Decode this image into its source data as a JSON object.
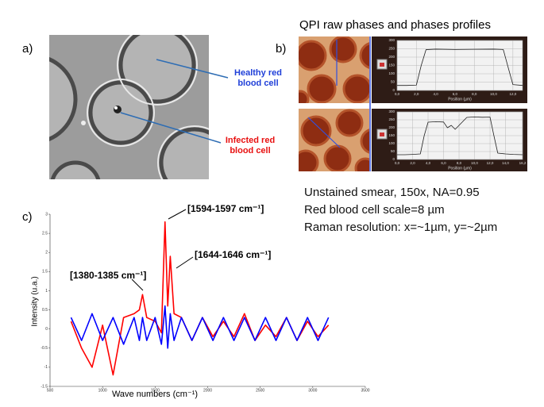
{
  "panel_a": {
    "label": "a)",
    "healthy": [
      "Healthy red",
      "blood cell"
    ],
    "infected": [
      "Infected red",
      "blood cell"
    ]
  },
  "panel_b": {
    "label": "b)",
    "title": "QPI raw phases and phases profiles",
    "profiles": [
      {
        "type": "line",
        "xlabel": "Position (µm)",
        "grid": true,
        "xlim": [
          0,
          13
        ],
        "ylim": [
          0,
          300
        ],
        "xticks": [
          {
            "value": 0,
            "label": "0,0"
          },
          {
            "value": 2,
            "label": "2,0"
          },
          {
            "value": 4,
            "label": "4,0"
          },
          {
            "value": 6,
            "label": "6,0"
          },
          {
            "value": 8,
            "label": "8,0"
          },
          {
            "value": 10,
            "label": "10,0"
          },
          {
            "value": 12,
            "label": "12,0"
          }
        ],
        "yticks": [
          0,
          50,
          100,
          150,
          200,
          250,
          300
        ],
        "x": [
          0,
          1,
          2,
          2.5,
          3,
          4,
          6,
          8,
          10,
          11,
          11.5,
          12,
          13
        ],
        "series": [
          {
            "color": "#222222",
            "values": [
              30,
              30,
              32,
              150,
              245,
              248,
              246,
              247,
              248,
              246,
              140,
              35,
              30
            ]
          }
        ]
      },
      {
        "type": "line",
        "xlabel": "Position (µm)",
        "grid": true,
        "xlim": [
          0,
          16.2
        ],
        "ylim": [
          0,
          300
        ],
        "xticks": [
          {
            "value": 0,
            "label": "0,0"
          },
          {
            "value": 2,
            "label": "2,0"
          },
          {
            "value": 4,
            "label": "4,0"
          },
          {
            "value": 6,
            "label": "6,0"
          },
          {
            "value": 8,
            "label": "8,0"
          },
          {
            "value": 10,
            "label": "10,0"
          },
          {
            "value": 12,
            "label": "12,0"
          },
          {
            "value": 14,
            "label": "14,0"
          },
          {
            "value": 16.2,
            "label": "16,2"
          }
        ],
        "yticks": [
          0,
          50,
          100,
          150,
          200,
          250,
          300
        ],
        "x": [
          0,
          1,
          2,
          3,
          3.5,
          4,
          5,
          6,
          6.5,
          7,
          7.5,
          8,
          9,
          10,
          11,
          12,
          12.5,
          13,
          14,
          15,
          16.2
        ],
        "series": [
          {
            "color": "#222222",
            "values": [
              30,
              30,
              32,
              35,
              150,
              235,
              238,
              236,
              200,
              215,
              190,
              215,
              265,
              268,
              266,
              267,
              150,
              40,
              35,
              32,
              30
            ]
          }
        ]
      }
    ]
  },
  "notes": [
    "Unstained smear, 150x, NA=0.95",
    "Red blood cell scale=8 µm",
    "Raman resolution: x=~1µm, y=~2µm"
  ],
  "chart_data": {
    "type": "line",
    "label": "c)",
    "xlabel": "Wave numbers (cm⁻¹)",
    "ylabel": "Intensity (u.a.)",
    "annotations": [
      "[1594-1597 cm⁻¹]",
      "[1644-1646 cm⁻¹]",
      "[1380-1385 cm⁻¹]"
    ],
    "xlim": [
      500,
      3500
    ],
    "ylim": [
      -1.5,
      3
    ],
    "xticks": [
      500,
      1000,
      1500,
      2000,
      2500,
      3000,
      3500
    ],
    "yticks": [
      -1.5,
      -1,
      -0.5,
      0,
      0.5,
      1,
      1.5,
      2,
      2.5,
      3
    ],
    "grid": false,
    "x": [
      700,
      800,
      900,
      1000,
      1100,
      1200,
      1300,
      1350,
      1380,
      1420,
      1500,
      1560,
      1594,
      1620,
      1644,
      1680,
      1750,
      1850,
      1950,
      2050,
      2150,
      2250,
      2350,
      2450,
      2550,
      2650,
      2750,
      2850,
      2950,
      3050,
      3150
    ],
    "series": [
      {
        "color": "#ff0000",
        "values": [
          0.2,
          -0.5,
          -1.0,
          0.1,
          -1.2,
          0.3,
          0.4,
          0.5,
          0.9,
          0.3,
          0.2,
          -0.1,
          2.8,
          0.6,
          1.9,
          0.4,
          0.3,
          -0.3,
          0.3,
          -0.2,
          0.2,
          -0.2,
          0.4,
          -0.3,
          0.1,
          -0.2,
          0.3,
          -0.3,
          0.2,
          -0.2,
          0.1
        ]
      },
      {
        "color": "#0000ff",
        "values": [
          0.3,
          -0.3,
          0.4,
          -0.3,
          0.3,
          -0.4,
          0.3,
          -0.3,
          0.3,
          -0.3,
          0.3,
          -0.4,
          0.6,
          -0.5,
          0.4,
          -0.3,
          0.3,
          -0.3,
          0.3,
          -0.3,
          0.3,
          -0.3,
          0.3,
          -0.3,
          0.3,
          -0.3,
          0.3,
          -0.3,
          0.3,
          -0.3,
          0.3
        ]
      }
    ]
  }
}
